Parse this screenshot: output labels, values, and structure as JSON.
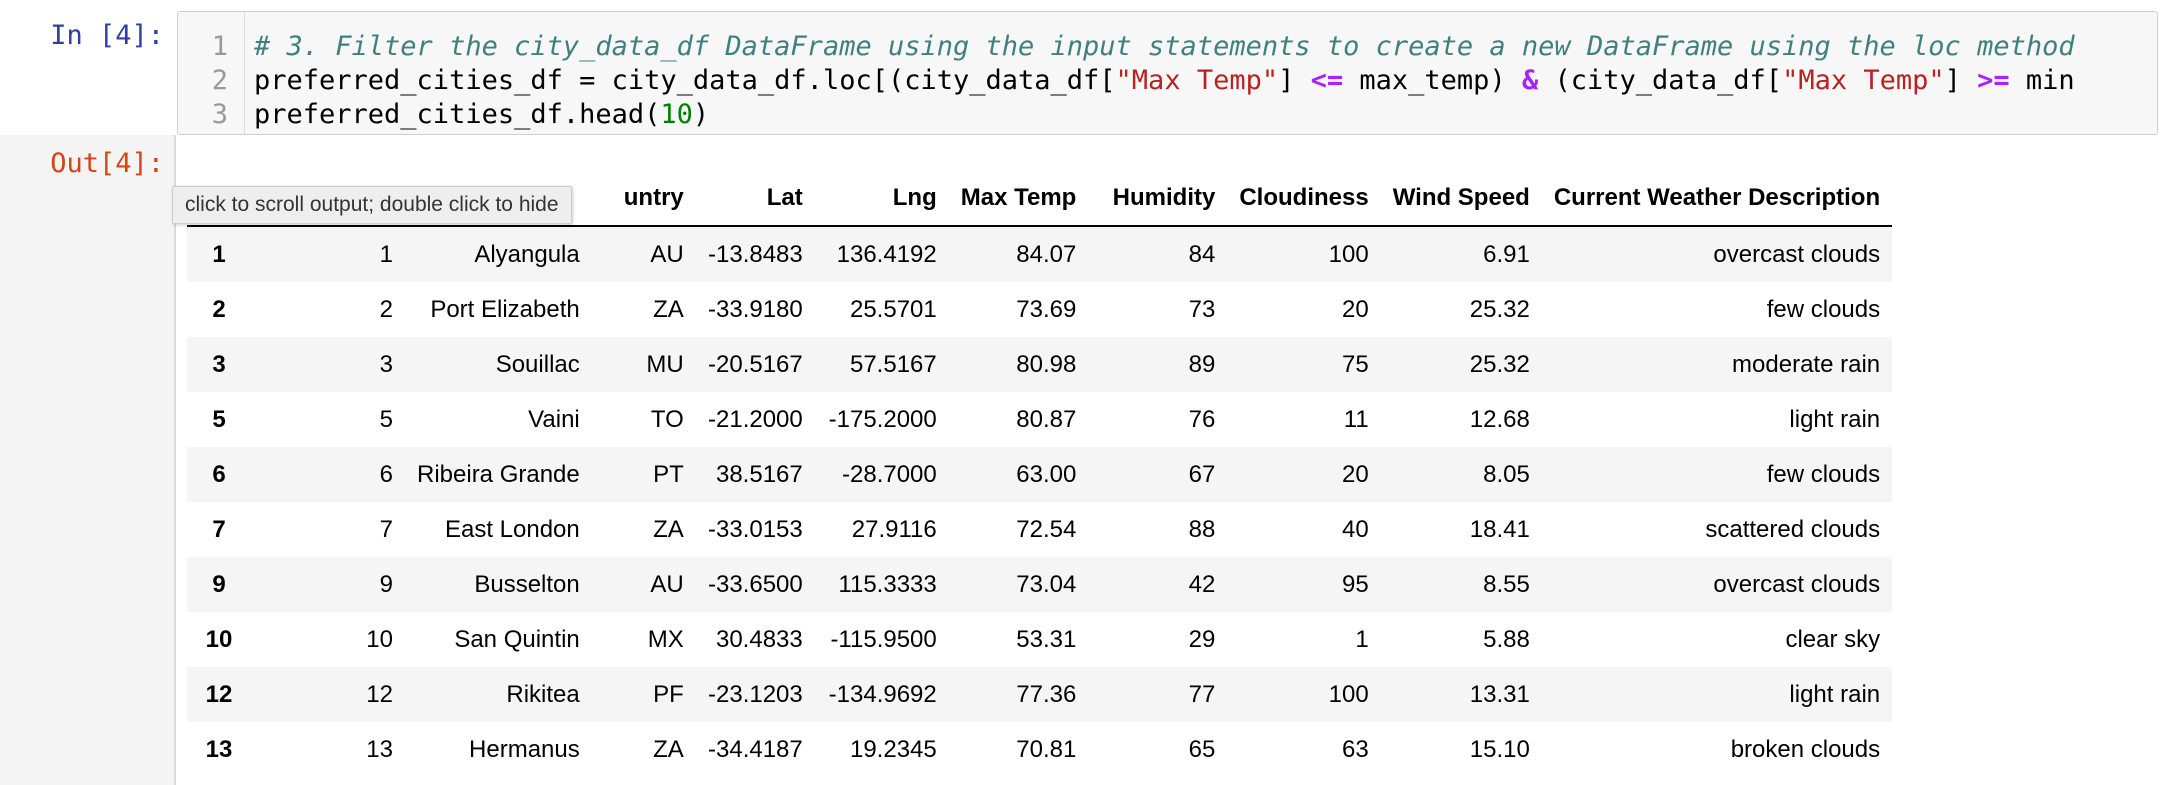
{
  "input_prompt": "In [4]:",
  "output_prompt": "Out[4]:",
  "code": {
    "line_numbers": [
      "1",
      "2",
      "3"
    ],
    "line1": "# 3. Filter the city_data_df DataFrame using the input statements to create a new DataFrame using the loc method",
    "line2": {
      "a": "preferred_cities_df = city_data_df.loc[(city_data_df[",
      "b": "\"Max Temp\"",
      "c": "] ",
      "d": "<=",
      "e": " max_temp) ",
      "f": "&",
      "g": " (city_data_df[",
      "h": "\"Max Temp\"",
      "i": "] ",
      "j": ">=",
      "k": " min"
    },
    "line3": {
      "a": "preferred_cities_df.head(",
      "b": "10",
      "c": ")"
    }
  },
  "tooltip": "click to scroll output; double click to hide",
  "table": {
    "headers": [
      "",
      "",
      "",
      "untry",
      "Lat",
      "Lng",
      "Max Temp",
      "Humidity",
      "Cloudiness",
      "Wind Speed",
      "Current Weather Description"
    ],
    "rows": [
      [
        "1",
        "1",
        "Alyangula",
        "AU",
        "-13.8483",
        "136.4192",
        "84.07",
        "84",
        "100",
        "6.91",
        "overcast clouds"
      ],
      [
        "2",
        "2",
        "Port Elizabeth",
        "ZA",
        "-33.9180",
        "25.5701",
        "73.69",
        "73",
        "20",
        "25.32",
        "few clouds"
      ],
      [
        "3",
        "3",
        "Souillac",
        "MU",
        "-20.5167",
        "57.5167",
        "80.98",
        "89",
        "75",
        "25.32",
        "moderate rain"
      ],
      [
        "5",
        "5",
        "Vaini",
        "TO",
        "-21.2000",
        "-175.2000",
        "80.87",
        "76",
        "11",
        "12.68",
        "light rain"
      ],
      [
        "6",
        "6",
        "Ribeira Grande",
        "PT",
        "38.5167",
        "-28.7000",
        "63.00",
        "67",
        "20",
        "8.05",
        "few clouds"
      ],
      [
        "7",
        "7",
        "East London",
        "ZA",
        "-33.0153",
        "27.9116",
        "72.54",
        "88",
        "40",
        "18.41",
        "scattered clouds"
      ],
      [
        "9",
        "9",
        "Busselton",
        "AU",
        "-33.6500",
        "115.3333",
        "73.04",
        "42",
        "95",
        "8.55",
        "overcast clouds"
      ],
      [
        "10",
        "10",
        "San Quintin",
        "MX",
        "30.4833",
        "-115.9500",
        "53.31",
        "29",
        "1",
        "5.88",
        "clear sky"
      ],
      [
        "12",
        "12",
        "Rikitea",
        "PF",
        "-23.1203",
        "-134.9692",
        "77.36",
        "77",
        "100",
        "13.31",
        "light rain"
      ],
      [
        "13",
        "13",
        "Hermanus",
        "ZA",
        "-34.4187",
        "19.2345",
        "70.81",
        "65",
        "63",
        "15.10",
        "broken clouds"
      ]
    ]
  },
  "colors": {
    "in_prompt": "#303f9f",
    "out_prompt": "#d84315",
    "comment": "#408080",
    "string": "#ba2121",
    "operator": "#aa22ff",
    "number": "#008000"
  }
}
